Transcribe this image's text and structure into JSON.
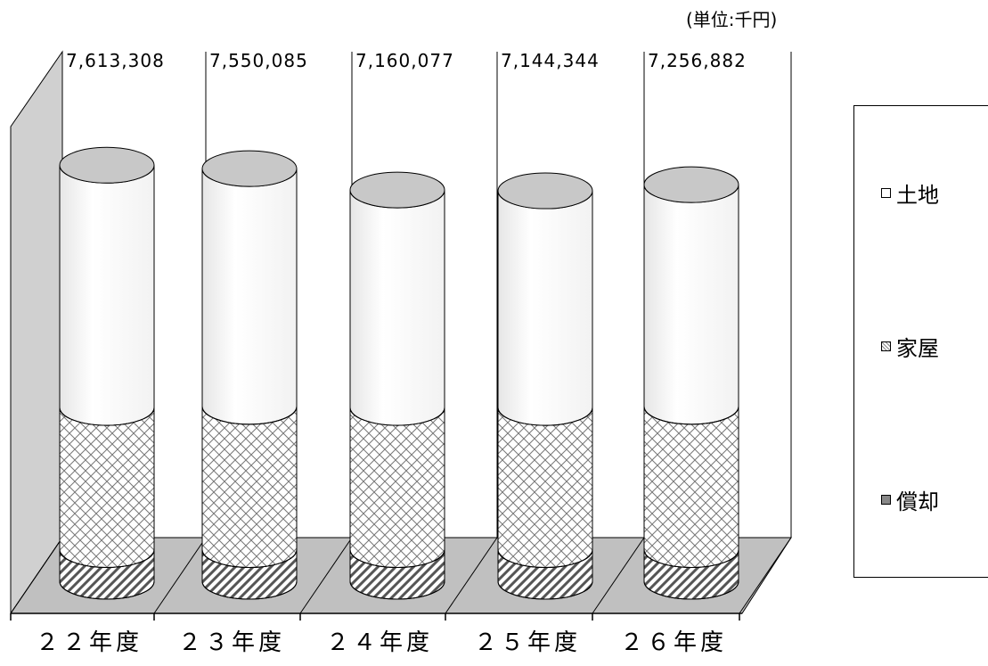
{
  "unit_label": "(単位:千円)",
  "chart_data": {
    "type": "bar",
    "stacked": true,
    "style": "3d-cylinder",
    "title": "",
    "xlabel": "",
    "ylabel": "",
    "categories": [
      "２２年度",
      "２３年度",
      "２４年度",
      "２５年度",
      "２６年度"
    ],
    "totals": [
      "7,613,308",
      "7,550,085",
      "7,160,077",
      "7,144,344",
      "7,256,882"
    ],
    "series": [
      {
        "name": "償却",
        "pattern": "diagonal-hatch",
        "values": [
          580000,
          580000,
          580000,
          580000,
          580000
        ]
      },
      {
        "name": "家屋",
        "pattern": "cross-hatch",
        "values": [
          2600000,
          2620000,
          2600000,
          2600000,
          2620000
        ]
      },
      {
        "name": "土地",
        "pattern": "solid-white",
        "values": [
          4433308,
          4350085,
          3980077,
          3964344,
          4056882
        ]
      }
    ],
    "legend_position": "right",
    "grid": true,
    "colors": {
      "land": "#ffffff",
      "house": "#ffffff",
      "depreciable": "#ffffff",
      "floor": "#c0c0c0",
      "wall": "#d0d0d0",
      "top": "#c8c8c8"
    }
  }
}
